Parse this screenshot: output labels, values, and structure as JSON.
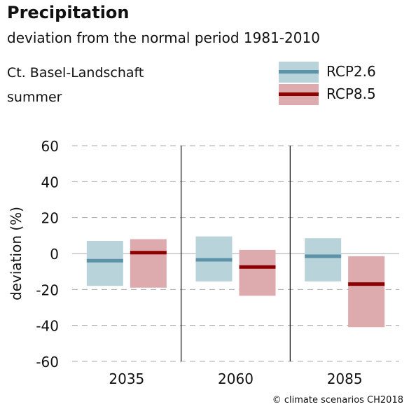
{
  "header": {
    "title": "Precipitation",
    "subtitle": "deviation from the normal period 1981-2010",
    "region": "Ct. Basel-Landschaft",
    "season": "summer"
  },
  "colors": {
    "rcp26_fill": "#b9d3da",
    "rcp26_line": "#5d93a8",
    "rcp85_fill": "#ddaaae",
    "rcp85_line": "#8b0000",
    "grid": "#aaaaaa",
    "zero_line": "#bbbbbb",
    "divider": "#111111"
  },
  "credit": "© climate scenarios CH2018",
  "chart_data": {
    "type": "bar",
    "title": "Precipitation",
    "ylabel": "deviation (%)",
    "ylim": [
      -60,
      60
    ],
    "yticks": [
      60,
      40,
      20,
      0,
      -20,
      -40,
      -60
    ],
    "grid": true,
    "legend_position": "top-right",
    "categories": [
      "2035",
      "2060",
      "2085"
    ],
    "series": [
      {
        "name": "RCP2.6",
        "low": [
          -18,
          -15.5,
          -15.5
        ],
        "median": [
          -4,
          -3.5,
          -1.5
        ],
        "high": [
          7,
          9.5,
          8.5
        ]
      },
      {
        "name": "RCP8.5",
        "low": [
          -19,
          -23.5,
          -41
        ],
        "median": [
          0.5,
          -7.5,
          -17
        ],
        "high": [
          8,
          2,
          -1.5
        ]
      }
    ]
  }
}
